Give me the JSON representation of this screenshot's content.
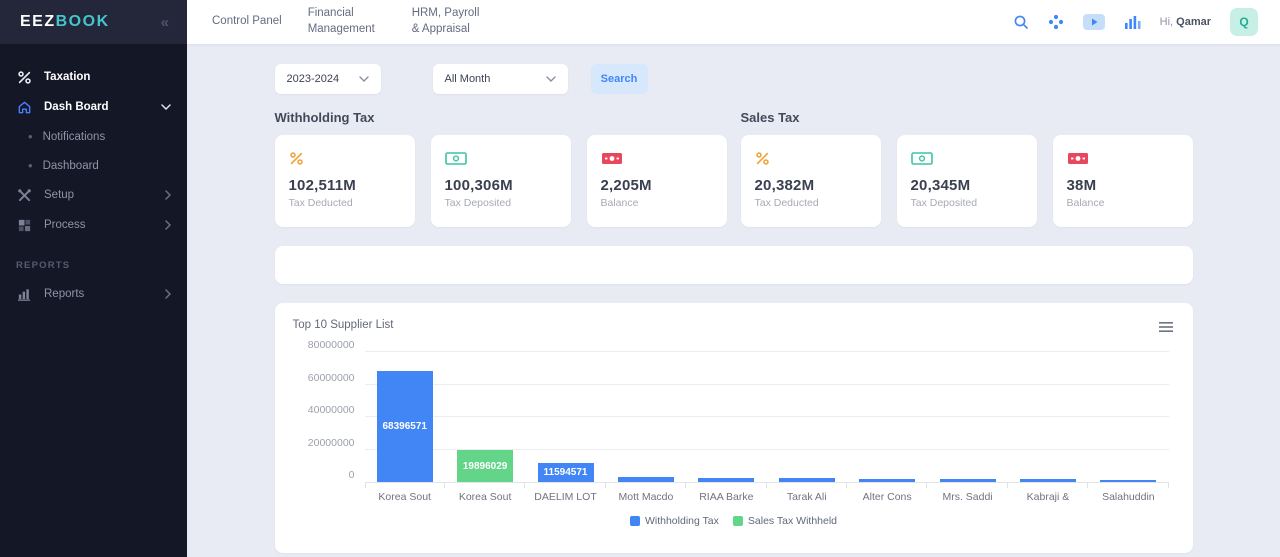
{
  "brand": {
    "primary": "EEZ",
    "secondary": "BOOK",
    "collapse_icon": "chevrons-left-icon"
  },
  "sidebar": {
    "items": [
      {
        "type": "item",
        "label": "Taxation",
        "icon": "percent-icon",
        "emphasis": true
      },
      {
        "type": "item",
        "label": "Dash Board",
        "icon": "home-icon",
        "emphasis": true,
        "chevron": "down",
        "icon_color": "blue"
      },
      {
        "type": "subitem",
        "label": "Notifications"
      },
      {
        "type": "subitem",
        "label": "Dashboard"
      },
      {
        "type": "item",
        "label": "Setup",
        "icon": "tools-icon",
        "chevron": "right"
      },
      {
        "type": "item",
        "label": "Process",
        "icon": "process-icon",
        "chevron": "right"
      },
      {
        "type": "section",
        "label": "REPORTS"
      },
      {
        "type": "item",
        "label": "Reports",
        "icon": "bar-chart-icon",
        "chevron": "right"
      }
    ]
  },
  "header": {
    "nav": [
      "Control Panel",
      "Financial Management",
      "HRM, Payroll & Appraisal"
    ],
    "icons": [
      "search-icon",
      "apps-dots-icon",
      "play-badge-icon",
      "stats-bars-icon"
    ],
    "greeting_prefix": "Hi, ",
    "greeting_name": "Qamar",
    "avatar_initial": "Q"
  },
  "filters": {
    "year_value": "2023-2024",
    "month_value": "All Month",
    "search_label": "Search"
  },
  "sections": [
    {
      "title": "Withholding Tax",
      "cards": [
        {
          "icon": "percent-icon",
          "icon_color": "#f2a33c",
          "value": "102,511M",
          "label": "Tax Deducted"
        },
        {
          "icon": "banknote-outline-icon",
          "icon_color": "#3cc2a7",
          "value": "100,306M",
          "label": "Tax Deposited"
        },
        {
          "icon": "banknote-filled-icon",
          "icon_color": "#e8485e",
          "value": "2,205M",
          "label": "Balance"
        }
      ]
    },
    {
      "title": "Sales Tax",
      "cards": [
        {
          "icon": "percent-icon",
          "icon_color": "#f2a33c",
          "value": "20,382M",
          "label": "Tax Deducted"
        },
        {
          "icon": "banknote-outline-icon",
          "icon_color": "#3cc2a7",
          "value": "20,345M",
          "label": "Tax Deposited"
        },
        {
          "icon": "banknote-filled-icon",
          "icon_color": "#e8485e",
          "value": "38M",
          "label": "Balance"
        }
      ]
    }
  ],
  "chart_data": {
    "type": "bar",
    "title": "Top 10 Supplier List",
    "categories": [
      "Korea Sout",
      "Korea Sout",
      "DAELIM LOT",
      "Mott Macdo",
      "RIAA Barke",
      "Tarak Ali",
      "Alter Cons",
      "Mrs. Saddi",
      "Kabraji &",
      "Salahuddin"
    ],
    "values": [
      68396571,
      19896029,
      11594571,
      2800000,
      2700000,
      2600000,
      1800000,
      1700000,
      1600000,
      1500000
    ],
    "bar_series": [
      "Withholding Tax",
      "Sales Tax Withheld",
      "Withholding Tax",
      "Withholding Tax",
      "Withholding Tax",
      "Withholding Tax",
      "Withholding Tax",
      "Withholding Tax",
      "Withholding Tax",
      "Withholding Tax"
    ],
    "data_labels_shown": [
      "68396571",
      "19896029",
      "11594571"
    ],
    "yticks": [
      0,
      20000000,
      40000000,
      60000000,
      80000000
    ],
    "ylim": [
      0,
      80000000
    ],
    "grid": true,
    "legend_position": "bottom",
    "legend": [
      {
        "name": "Withholding Tax",
        "color": "#4286f5"
      },
      {
        "name": "Sales Tax Withheld",
        "color": "#62d588"
      }
    ]
  },
  "colors": {
    "accent_blue": "#3f86f8",
    "brand_teal": "#45c5cb",
    "sidebar_bg": "#131726",
    "main_bg": "#e9ebf4",
    "bar_blue": "#4286f5",
    "bar_green": "#62d588",
    "orange": "#f2a33c",
    "teal": "#3cc2a7",
    "red": "#e8485e"
  }
}
